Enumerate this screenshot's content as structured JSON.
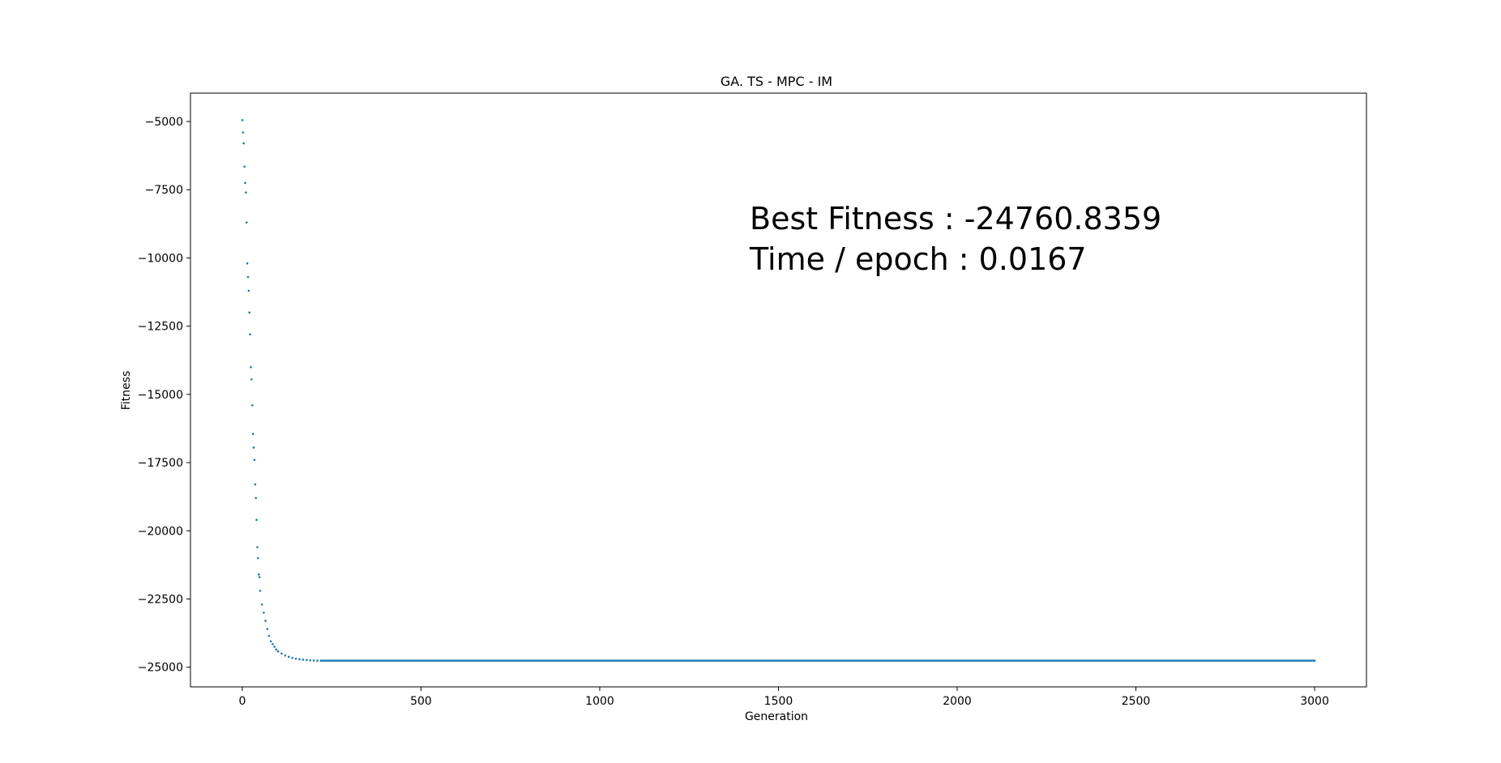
{
  "chart_data": {
    "type": "scatter",
    "title": "GA. TS - MPC - IM",
    "xlabel": "Generation",
    "ylabel": "Fitness",
    "xlim": [
      -145,
      3145
    ],
    "ylim": [
      -25720,
      -3960
    ],
    "xticks": [
      0,
      500,
      1000,
      1500,
      2000,
      2500,
      3000
    ],
    "yticks": [
      -5000,
      -7500,
      -10000,
      -12500,
      -15000,
      -17500,
      -20000,
      -22500,
      -25000
    ],
    "grid": false,
    "legend": "none",
    "marker_color": "#1f77b4",
    "annotations": [
      "Best Fitness : -24760.8359",
      "Time / epoch : 0.0167"
    ],
    "series": [
      {
        "x": [
          0,
          2,
          4,
          6,
          8,
          10,
          12,
          14,
          16,
          18,
          20,
          22,
          24,
          26,
          28,
          30,
          32,
          34,
          36,
          38,
          40,
          42,
          44,
          46,
          48,
          50,
          55,
          60,
          65,
          70,
          75,
          80,
          85,
          90,
          95,
          100,
          110,
          120,
          130,
          140,
          150,
          160,
          170,
          180,
          190,
          200,
          210,
          220,
          250,
          300,
          500,
          1000,
          1500,
          2000,
          2500,
          3000
        ],
        "y": [
          -4950,
          -5400,
          -5800,
          -6650,
          -7250,
          -7600,
          -8700,
          -10200,
          -10700,
          -11200,
          -12000,
          -12800,
          -14000,
          -14450,
          -15400,
          -16450,
          -16950,
          -17400,
          -18300,
          -18800,
          -19600,
          -20600,
          -21000,
          -21600,
          -21700,
          -22200,
          -22700,
          -23000,
          -23300,
          -23600,
          -23850,
          -24050,
          -24150,
          -24250,
          -24350,
          -24420,
          -24500,
          -24570,
          -24620,
          -24660,
          -24690,
          -24710,
          -24725,
          -24738,
          -24748,
          -24754,
          -24758,
          -24760,
          -24760.5,
          -24760.8,
          -24760.8,
          -24760.8,
          -24760.8,
          -24760.8,
          -24760.8,
          -24760.8
        ]
      }
    ]
  }
}
